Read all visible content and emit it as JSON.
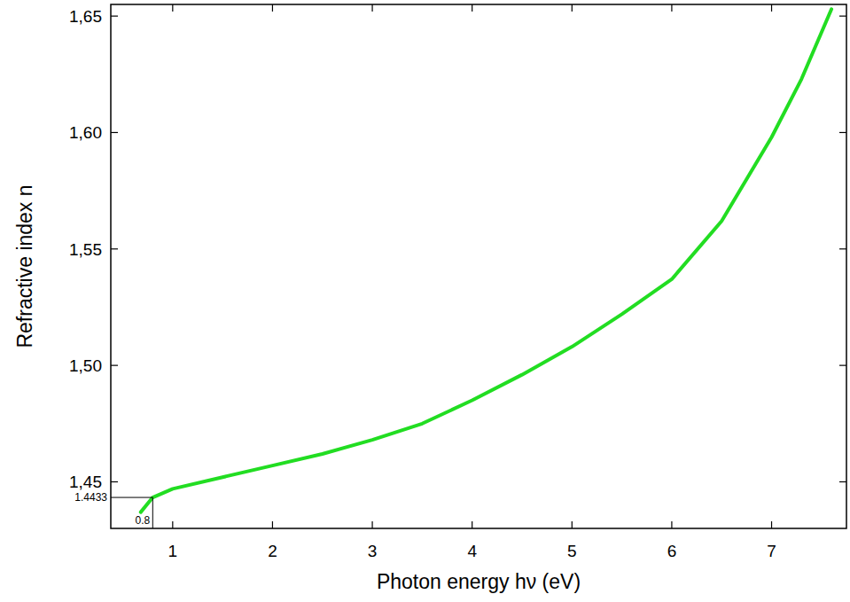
{
  "chart_data": {
    "type": "line",
    "x_label": "Photon energy hν (eV)",
    "y_label": "Refractive index n",
    "xlim": [
      0.38,
      7.75
    ],
    "ylim": [
      1.43,
      1.655
    ],
    "xticks": [
      1,
      2,
      3,
      4,
      5,
      6,
      7
    ],
    "yticks": [
      {
        "value": 1.45,
        "label": "1,45"
      },
      {
        "value": 1.5,
        "label": "1,50"
      },
      {
        "value": 1.55,
        "label": "1,55"
      },
      {
        "value": 1.6,
        "label": "1,60"
      },
      {
        "value": 1.65,
        "label": "1,65"
      }
    ],
    "grid": false,
    "series": [
      {
        "color": "#22dd22",
        "x": [
          0.68,
          0.8,
          1.0,
          1.5,
          2.0,
          2.5,
          3.0,
          3.5,
          4.0,
          4.5,
          5.0,
          5.5,
          6.0,
          6.5,
          7.0,
          7.3,
          7.6
        ],
        "values": [
          1.437,
          1.4433,
          1.447,
          1.452,
          1.457,
          1.462,
          1.468,
          1.475,
          1.485,
          1.496,
          1.508,
          1.522,
          1.537,
          1.562,
          1.598,
          1.623,
          1.653
        ]
      }
    ],
    "annotations": [
      {
        "x": 0.8,
        "y": 1.4433,
        "x_label": "0.8",
        "y_label": "1.4433"
      }
    ]
  }
}
